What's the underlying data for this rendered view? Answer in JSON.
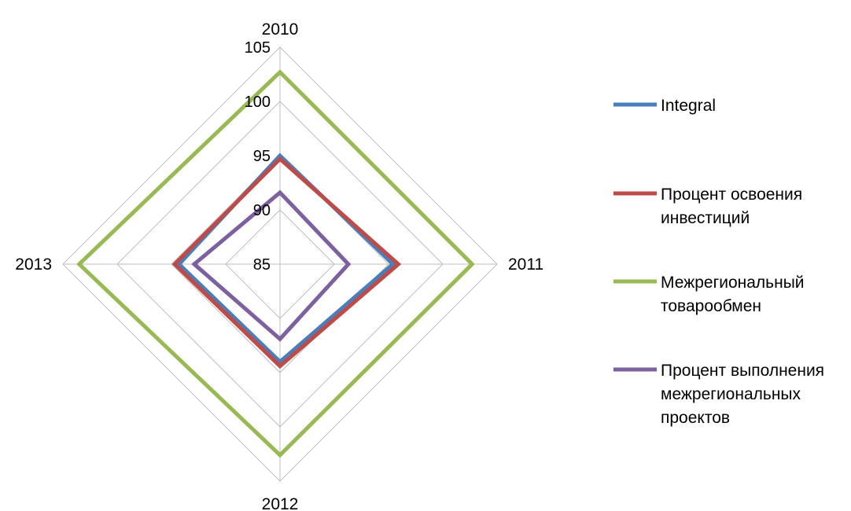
{
  "chart_data": {
    "type": "radar",
    "categories": [
      "2010",
      "2011",
      "2012",
      "2013"
    ],
    "rlim": [
      85,
      105
    ],
    "ticks": [
      "85",
      "90",
      "95",
      "100",
      "105"
    ],
    "grid": true,
    "legend_position": "right",
    "series": [
      {
        "name": "Integral",
        "values": [
          95.0,
          95.4,
          94.0,
          94.3
        ],
        "color": "#4a7ebb"
      },
      {
        "name": "Процент освоения инвестиций",
        "values": [
          94.7,
          95.9,
          94.4,
          94.7
        ],
        "color": "#be4b48"
      },
      {
        "name": "Межрегиональный товарообмен",
        "values": [
          102.7,
          102.7,
          102.6,
          103.5
        ],
        "color": "#98b954"
      },
      {
        "name": "Процент выполнения межрегиональных проектов",
        "values": [
          91.6,
          91.3,
          91.9,
          92.9
        ],
        "color": "#7d60a0"
      }
    ],
    "legend_lines": [
      [
        "Integral"
      ],
      [
        "Процент освоения",
        "инвестиций"
      ],
      [
        "Межрегиональный",
        "товарообмен"
      ],
      [
        "Процент выполнения",
        "межрегиональных",
        "проектов"
      ]
    ]
  }
}
